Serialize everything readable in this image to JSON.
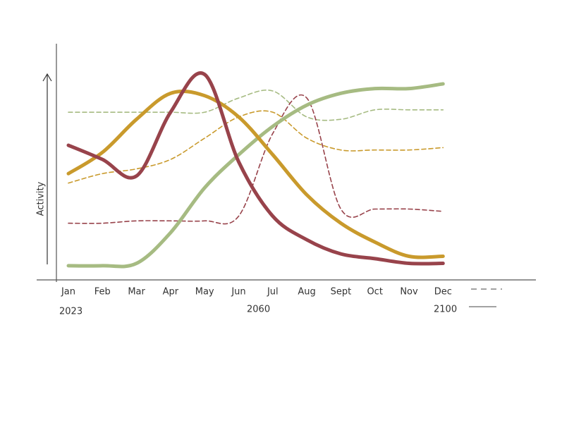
{
  "chart_data": {
    "type": "line",
    "y_label": "Activity",
    "categories": [
      "Jan",
      "Feb",
      "Mar",
      "Apr",
      "May",
      "Jun",
      "Jul",
      "Aug",
      "Sept",
      "Oct",
      "Nov",
      "Dec"
    ],
    "annotations": [
      "2023",
      "2060",
      "2100"
    ],
    "ylim": [
      0,
      100
    ],
    "series": [
      {
        "color": "#a6bb82",
        "dashed": true,
        "values": [
          71,
          71,
          71,
          71,
          71,
          77,
          80,
          69,
          68,
          72,
          72,
          72
        ]
      },
      {
        "color": "#c99a2c",
        "dashed": true,
        "values": [
          41,
          45,
          47,
          51,
          60,
          69,
          71,
          60,
          55,
          55,
          55,
          56
        ]
      },
      {
        "color": "#98434b",
        "dashed": true,
        "values": [
          24,
          24,
          25,
          25,
          25,
          27,
          62,
          77,
          30,
          30,
          30,
          29
        ]
      },
      {
        "color": "#a6bb82",
        "dashed": false,
        "values": [
          6,
          6,
          7,
          20,
          39,
          53,
          65,
          74,
          79,
          81,
          81,
          83
        ]
      },
      {
        "color": "#c99a2c",
        "dashed": false,
        "values": [
          45,
          54,
          68,
          79,
          78,
          69,
          53,
          36,
          24,
          16,
          10,
          10
        ]
      },
      {
        "color": "#98434b",
        "dashed": false,
        "values": [
          57,
          51,
          44,
          71,
          87,
          50,
          27,
          17,
          11,
          9,
          7,
          7
        ]
      }
    ]
  }
}
